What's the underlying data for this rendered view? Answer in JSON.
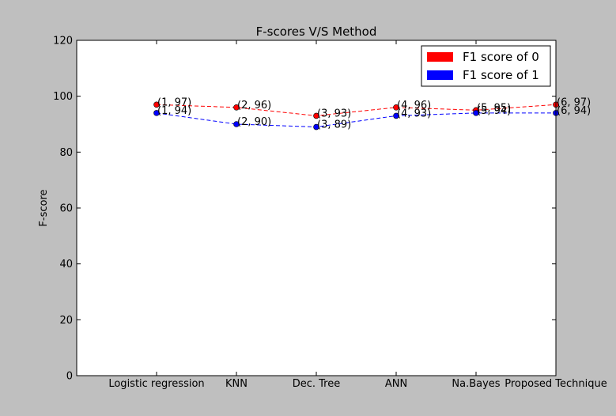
{
  "chart_data": {
    "type": "line",
    "title": "F-scores V/S Method",
    "xlabel": "",
    "ylabel": "F-score",
    "categories": [
      "Logistic regression",
      "KNN",
      "Dec. Tree",
      "ANN",
      "Na.Bayes",
      "Proposed Technique"
    ],
    "x": [
      1,
      2,
      3,
      4,
      5,
      6
    ],
    "xlim": [
      0,
      6
    ],
    "ylim": [
      0,
      120
    ],
    "yticks": [
      "0",
      "20",
      "40",
      "60",
      "80",
      "100",
      "120"
    ],
    "grid": false,
    "legend_position": "top-right",
    "series": [
      {
        "name": "F1 score of 0",
        "color": "#ff0000",
        "values": [
          97,
          96,
          93,
          96,
          95,
          97
        ],
        "point_labels": [
          "(1, 97)",
          "(2, 96)",
          "(3, 93)",
          "(4, 96)",
          "(5, 95)",
          "(6, 97)"
        ]
      },
      {
        "name": "F1 score of 1",
        "color": "#0000ff",
        "values": [
          94,
          90,
          89,
          93,
          94,
          94
        ],
        "point_labels": [
          "(1, 94)",
          "(2, 90)",
          "(3, 89)",
          "(4, 93)",
          "(5, 94)",
          "(6, 94)"
        ]
      }
    ]
  }
}
